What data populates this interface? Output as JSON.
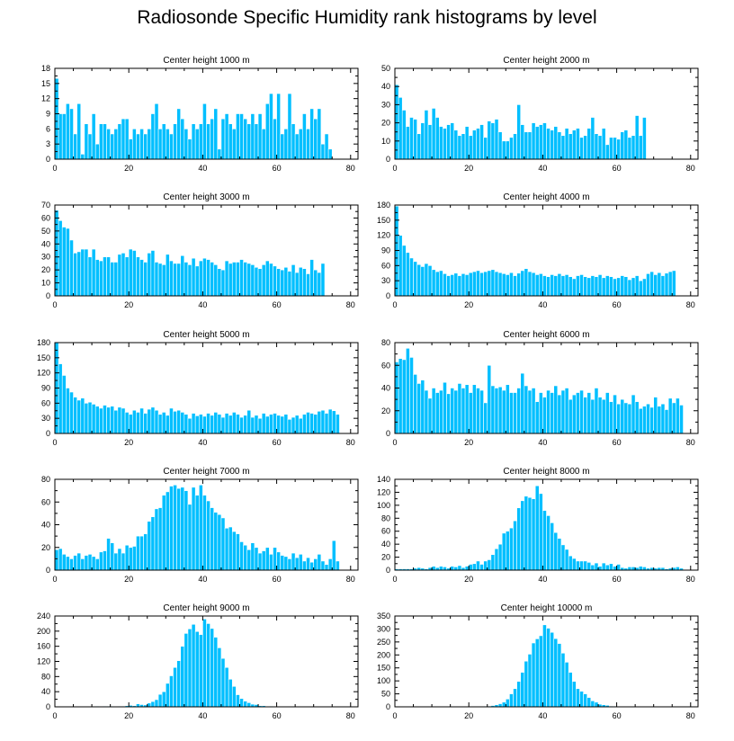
{
  "title": "Radiosonde Specific Humidity rank histograms by level",
  "colors": {
    "bar": "#00bfff"
  },
  "chart_data": [
    {
      "type": "bar",
      "title": "Center height 1000 m",
      "xlim": [
        0,
        82
      ],
      "ylim": [
        0,
        18
      ],
      "xticks": [
        0,
        20,
        40,
        60,
        80
      ],
      "yticks": [
        0,
        3,
        6,
        9,
        12,
        15,
        18
      ],
      "values": [
        16,
        9,
        9,
        11,
        10,
        5,
        11,
        1,
        7,
        5,
        9,
        3,
        7,
        7,
        6,
        5,
        6,
        7,
        8,
        8,
        4,
        6,
        5,
        6,
        5,
        6,
        9,
        11,
        6,
        7,
        6,
        5,
        7,
        10,
        8,
        6,
        4,
        7,
        6,
        7,
        11,
        7,
        8,
        10,
        2,
        8,
        9,
        7,
        6,
        9,
        9,
        8,
        7,
        9,
        7,
        9,
        6,
        11,
        13,
        8,
        13,
        5,
        6,
        13,
        7,
        5,
        6,
        9,
        6,
        10,
        8,
        10,
        3,
        5,
        2
      ]
    },
    {
      "type": "bar",
      "title": "Center height 2000 m",
      "xlim": [
        0,
        82
      ],
      "ylim": [
        0,
        50
      ],
      "xticks": [
        0,
        20,
        40,
        60,
        80
      ],
      "yticks": [
        0,
        10,
        20,
        30,
        40,
        50
      ],
      "values": [
        41,
        34,
        27,
        18,
        23,
        22,
        14,
        20,
        27,
        19,
        28,
        23,
        18,
        17,
        19,
        20,
        16,
        13,
        14,
        18,
        13,
        16,
        17,
        19,
        12,
        21,
        20,
        22,
        15,
        10,
        10,
        12,
        14,
        30,
        19,
        15,
        15,
        20,
        18,
        19,
        20,
        17,
        16,
        18,
        15,
        13,
        17,
        14,
        16,
        17,
        12,
        13,
        17,
        23,
        14,
        13,
        17,
        8,
        12,
        12,
        11,
        15,
        16,
        12,
        13,
        24,
        13,
        23
      ]
    },
    {
      "type": "bar",
      "title": "Center height 3000 m",
      "xlim": [
        0,
        82
      ],
      "ylim": [
        0,
        70
      ],
      "xticks": [
        0,
        20,
        40,
        60,
        80
      ],
      "yticks": [
        0,
        10,
        20,
        30,
        40,
        50,
        60,
        70
      ],
      "values": [
        66,
        58,
        53,
        52,
        43,
        33,
        34,
        36,
        36,
        30,
        36,
        28,
        27,
        30,
        30,
        26,
        26,
        32,
        33,
        30,
        36,
        35,
        30,
        28,
        26,
        33,
        35,
        26,
        25,
        24,
        32,
        27,
        25,
        25,
        31,
        26,
        24,
        29,
        23,
        27,
        29,
        28,
        26,
        24,
        21,
        20,
        27,
        25,
        26,
        26,
        28,
        26,
        25,
        24,
        22,
        21,
        24,
        27,
        25,
        23,
        21,
        20,
        22,
        19,
        24,
        18,
        22,
        21,
        17,
        28,
        20,
        18,
        25
      ]
    },
    {
      "type": "bar",
      "title": "Center height 4000 m",
      "xlim": [
        0,
        82
      ],
      "ylim": [
        0,
        180
      ],
      "xticks": [
        0,
        20,
        40,
        60,
        80
      ],
      "yticks": [
        0,
        30,
        60,
        90,
        120,
        150,
        180
      ],
      "values": [
        178,
        120,
        100,
        86,
        75,
        68,
        62,
        58,
        64,
        60,
        52,
        48,
        50,
        44,
        40,
        42,
        45,
        40,
        44,
        42,
        46,
        48,
        50,
        46,
        48,
        50,
        52,
        48,
        46,
        44,
        42,
        46,
        40,
        45,
        50,
        54,
        48,
        46,
        42,
        44,
        40,
        38,
        42,
        40,
        44,
        40,
        42,
        38,
        34,
        40,
        42,
        38,
        36,
        40,
        38,
        42,
        36,
        40,
        38,
        34,
        36,
        40,
        38,
        32,
        36,
        40,
        30,
        34,
        44,
        48,
        42,
        46,
        40,
        45,
        48,
        50
      ]
    },
    {
      "type": "bar",
      "title": "Center height 5000 m",
      "xlim": [
        0,
        82
      ],
      "ylim": [
        0,
        180
      ],
      "xticks": [
        0,
        20,
        40,
        60,
        80
      ],
      "yticks": [
        0,
        30,
        60,
        90,
        120,
        150,
        180
      ],
      "values": [
        180,
        138,
        115,
        90,
        82,
        72,
        66,
        70,
        60,
        62,
        58,
        54,
        50,
        56,
        52,
        54,
        46,
        52,
        50,
        42,
        38,
        46,
        42,
        50,
        40,
        48,
        52,
        46,
        38,
        42,
        36,
        50,
        44,
        46,
        42,
        38,
        30,
        40,
        35,
        38,
        34,
        40,
        36,
        42,
        38,
        32,
        40,
        36,
        42,
        38,
        32,
        36,
        46,
        32,
        36,
        30,
        40,
        34,
        38,
        40,
        36,
        34,
        38,
        28,
        32,
        36,
        30,
        38,
        42,
        40,
        38,
        44,
        46,
        40,
        48,
        45,
        38
      ]
    },
    {
      "type": "bar",
      "title": "Center height 6000 m",
      "xlim": [
        0,
        82
      ],
      "ylim": [
        0,
        80
      ],
      "xticks": [
        0,
        20,
        40,
        60,
        80
      ],
      "yticks": [
        0,
        20,
        40,
        60,
        80
      ],
      "values": [
        63,
        66,
        65,
        75,
        67,
        52,
        44,
        47,
        38,
        31,
        40,
        36,
        38,
        45,
        35,
        40,
        38,
        44,
        40,
        43,
        36,
        43,
        40,
        38,
        27,
        60,
        42,
        40,
        41,
        38,
        43,
        36,
        36,
        40,
        53,
        42,
        38,
        40,
        28,
        36,
        32,
        38,
        36,
        42,
        34,
        38,
        40,
        30,
        34,
        36,
        38,
        32,
        36,
        30,
        40,
        32,
        30,
        36,
        28,
        34,
        26,
        30,
        27,
        26,
        34,
        28,
        22,
        24,
        26,
        23,
        32,
        24,
        26,
        21,
        31,
        27,
        31,
        25
      ]
    },
    {
      "type": "bar",
      "title": "Center height 7000 m",
      "xlim": [
        0,
        82
      ],
      "ylim": [
        0,
        80
      ],
      "xticks": [
        0,
        20,
        40,
        60,
        80
      ],
      "yticks": [
        0,
        20,
        40,
        60,
        80
      ],
      "values": [
        18,
        19,
        14,
        12,
        10,
        13,
        15,
        10,
        13,
        14,
        12,
        10,
        16,
        17,
        28,
        24,
        15,
        19,
        15,
        22,
        20,
        21,
        30,
        30,
        32,
        43,
        47,
        54,
        55,
        66,
        69,
        74,
        75,
        72,
        73,
        70,
        58,
        73,
        66,
        75,
        66,
        61,
        55,
        51,
        49,
        46,
        37,
        38,
        34,
        32,
        25,
        22,
        18,
        24,
        20,
        15,
        17,
        20,
        14,
        20,
        16,
        13,
        12,
        10,
        15,
        11,
        14,
        8,
        11,
        7,
        10,
        14,
        8,
        5,
        10,
        26,
        8
      ]
    },
    {
      "type": "bar",
      "title": "Center height 8000 m",
      "xlim": [
        0,
        82
      ],
      "ylim": [
        0,
        140
      ],
      "xticks": [
        0,
        20,
        40,
        60,
        80
      ],
      "yticks": [
        0,
        20,
        40,
        60,
        80,
        100,
        120,
        140
      ],
      "values": [
        2,
        2,
        2,
        2,
        2,
        3,
        4,
        3,
        2,
        4,
        6,
        4,
        6,
        5,
        3,
        6,
        5,
        7,
        4,
        6,
        9,
        10,
        14,
        9,
        14,
        16,
        24,
        33,
        40,
        57,
        60,
        65,
        76,
        96,
        107,
        114,
        112,
        110,
        130,
        118,
        92,
        84,
        73,
        58,
        49,
        39,
        32,
        22,
        18,
        14,
        14,
        14,
        12,
        8,
        11,
        6,
        11,
        8,
        10,
        6,
        9,
        4,
        3,
        5,
        5,
        4,
        6,
        5,
        3,
        4,
        3,
        4,
        4,
        2,
        3,
        4,
        5,
        3
      ]
    },
    {
      "type": "bar",
      "title": "Center height 9000 m",
      "xlim": [
        0,
        82
      ],
      "ylim": [
        0,
        240
      ],
      "xticks": [
        0,
        20,
        40,
        60,
        80
      ],
      "yticks": [
        0,
        40,
        80,
        120,
        160,
        200,
        240
      ],
      "values": [
        1,
        1,
        1,
        1,
        1,
        1,
        1,
        1,
        1,
        1,
        1,
        2,
        1,
        2,
        2,
        2,
        1,
        2,
        2,
        3,
        4,
        3,
        8,
        6,
        5,
        10,
        14,
        19,
        33,
        40,
        62,
        82,
        104,
        122,
        160,
        194,
        206,
        218,
        199,
        191,
        232,
        220,
        207,
        184,
        156,
        128,
        104,
        73,
        54,
        32,
        22,
        15,
        11,
        7,
        6,
        3,
        3,
        1,
        2,
        1,
        1,
        1,
        1,
        1,
        1,
        1,
        1,
        1,
        1,
        1,
        1,
        1,
        1,
        1,
        1,
        1,
        1,
        1
      ]
    },
    {
      "type": "bar",
      "title": "Center height 10000 m",
      "xlim": [
        0,
        82
      ],
      "ylim": [
        0,
        350
      ],
      "xticks": [
        0,
        20,
        40,
        60,
        80
      ],
      "yticks": [
        0,
        50,
        100,
        150,
        200,
        250,
        300,
        350
      ],
      "values": [
        1,
        1,
        1,
        1,
        1,
        1,
        1,
        1,
        1,
        1,
        1,
        1,
        1,
        1,
        1,
        1,
        1,
        1,
        1,
        1,
        1,
        1,
        1,
        1,
        2,
        3,
        5,
        8,
        12,
        18,
        30,
        50,
        70,
        98,
        133,
        176,
        203,
        246,
        262,
        274,
        316,
        303,
        287,
        263,
        244,
        207,
        172,
        133,
        98,
        70,
        60,
        50,
        36,
        23,
        18,
        10,
        8,
        6,
        3,
        2,
        1,
        1,
        1,
        1,
        1,
        1,
        1,
        1,
        1,
        1,
        1,
        1,
        1,
        1,
        1,
        1,
        1,
        1
      ]
    }
  ]
}
